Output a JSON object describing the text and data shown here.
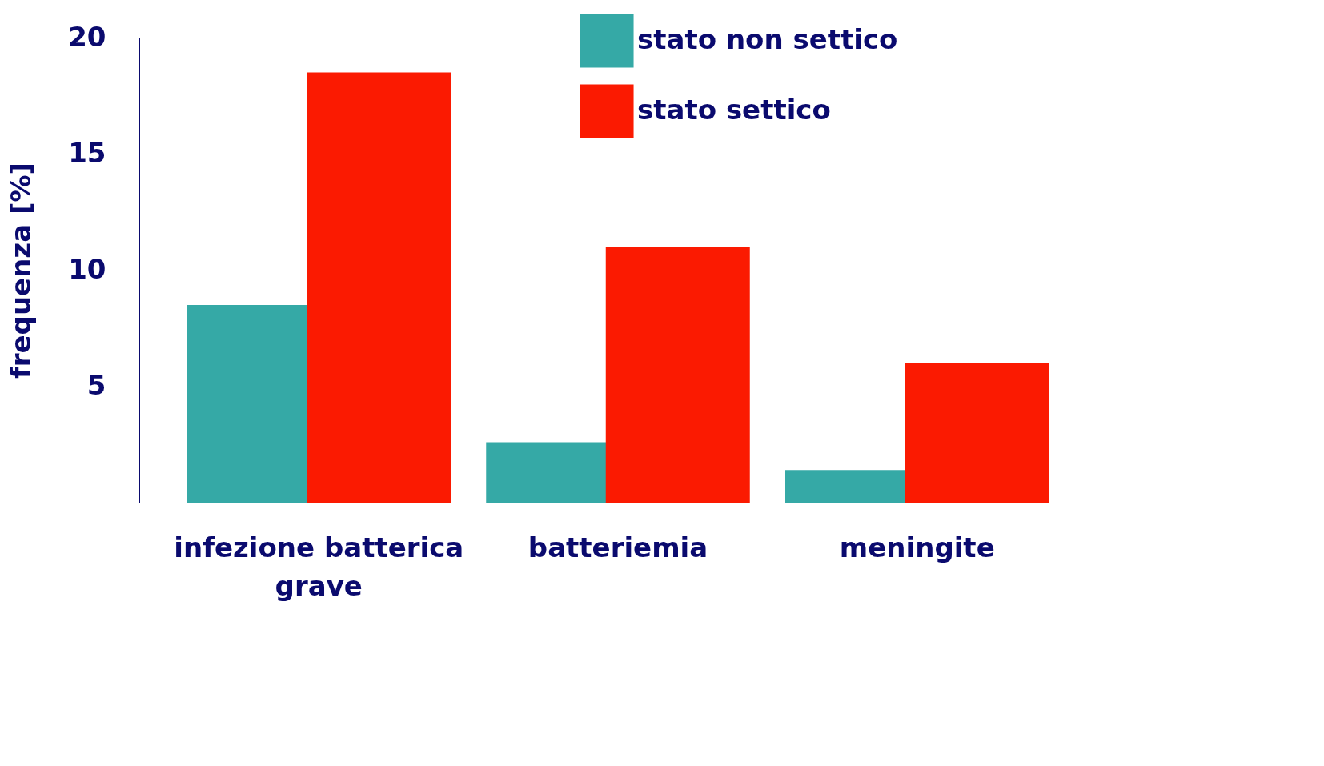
{
  "chart_data": {
    "type": "bar",
    "ylabel": "frequenza [%]",
    "categories": [
      "infezione batterica grave",
      "batteriemia",
      "meningite"
    ],
    "series": [
      {
        "name": "stato non settico",
        "color": "#35a9a6",
        "values": [
          8.5,
          2.6,
          1.4
        ]
      },
      {
        "name": "stato settico",
        "color": "#fb1a01",
        "values": [
          18.5,
          11,
          6
        ]
      }
    ],
    "ylim": [
      0,
      20
    ],
    "yticks": [
      5,
      10,
      15,
      20
    ],
    "grid": false,
    "legend": "top"
  }
}
